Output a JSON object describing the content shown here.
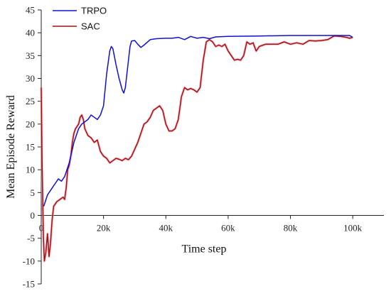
{
  "chart_data": {
    "type": "line",
    "title": "",
    "xlabel": "Time step",
    "ylabel": "Mean Episode Reward",
    "xlim": [
      0,
      110000
    ],
    "ylim": [
      -15,
      45
    ],
    "x_ticks": [
      0,
      20000,
      40000,
      60000,
      80000,
      100000
    ],
    "x_tick_labels": [
      "0",
      "20k",
      "40k",
      "60k",
      "80k",
      "100k"
    ],
    "y_ticks": [
      -15,
      -10,
      -5,
      0,
      5,
      10,
      15,
      20,
      25,
      30,
      35,
      40,
      45
    ],
    "y_tick_labels": [
      "-15",
      "-10",
      "-5",
      "0",
      "5",
      "10",
      "15",
      "20",
      "25",
      "30",
      "35",
      "40",
      "45"
    ],
    "grid": false,
    "legend_position": "top-left",
    "series": [
      {
        "name": "TRPO",
        "color": "#1010d0",
        "x": [
          800,
          2000,
          3500,
          4500,
          5500,
          6500,
          7500,
          9000,
          10500,
          12000,
          13000,
          14000,
          15000,
          16000,
          17000,
          18000,
          19000,
          20000,
          21000,
          22000,
          22500,
          23000,
          24000,
          25000,
          26000,
          26500,
          27000,
          28000,
          28500,
          29000,
          30000,
          31000,
          32000,
          33000,
          35000,
          37000,
          40000,
          42000,
          44000,
          46000,
          48000,
          50000,
          52000,
          54000,
          56000,
          60000,
          70000,
          80000,
          90000,
          99000,
          100000
        ],
        "y": [
          2,
          4.5,
          6,
          7,
          8,
          7.5,
          8.5,
          11.5,
          16,
          19,
          20,
          20.5,
          21,
          22,
          21.5,
          21,
          22,
          24,
          31,
          36,
          37,
          36.5,
          33,
          30,
          27.5,
          26.8,
          28,
          34,
          37,
          38.2,
          38.3,
          37.5,
          36.8,
          37.3,
          38.5,
          38.7,
          38.8,
          38.8,
          39,
          38.5,
          39.2,
          38.8,
          39,
          38.7,
          39.1,
          39.2,
          39.3,
          39.4,
          39.4,
          39.4,
          39
        ]
      },
      {
        "name": "SAC",
        "color": "#a01010",
        "x": [
          0,
          300,
          700,
          1000,
          1500,
          2000,
          2500,
          3000,
          3500,
          4000,
          5000,
          6000,
          7000,
          7500,
          8000,
          8500,
          9000,
          9500,
          10000,
          10500,
          11000,
          12000,
          12500,
          13000,
          13500,
          14000,
          15000,
          16000,
          17000,
          18000,
          19000,
          20000,
          21000,
          22000,
          23000,
          24000,
          25000,
          26000,
          27000,
          28000,
          29000,
          30000,
          31000,
          32000,
          33000,
          34000,
          35000,
          36000,
          37000,
          38000,
          39000,
          40000,
          41000,
          42000,
          43000,
          44000,
          45000,
          46000,
          47000,
          48000,
          49000,
          50000,
          51000,
          52000,
          53000,
          54000,
          55000,
          56000,
          57000,
          58000,
          59000,
          60000,
          61000,
          62000,
          63000,
          64000,
          65000,
          66000,
          67000,
          68000,
          69000,
          70000,
          72000,
          74000,
          76000,
          78000,
          80000,
          82000,
          84000,
          86000,
          88000,
          90000,
          92000,
          94000,
          96000,
          98000,
          99000,
          100000
        ],
        "y": [
          28,
          10,
          -5,
          -10,
          -8,
          -4,
          -9,
          -6,
          -1,
          2,
          3,
          3.5,
          4,
          3.5,
          6,
          10,
          11,
          13,
          16,
          18,
          19,
          20,
          21.5,
          22,
          21,
          19,
          17.5,
          17,
          16,
          16.5,
          14,
          13,
          12.5,
          11.5,
          12,
          12.5,
          12.3,
          12,
          12.5,
          12.2,
          13,
          14.5,
          16,
          18,
          20,
          20.5,
          21.5,
          23,
          23.5,
          24,
          23,
          20,
          18.5,
          18.5,
          19,
          21,
          26,
          28,
          27.5,
          27.8,
          27.5,
          27,
          28,
          34,
          38,
          38.5,
          38,
          37,
          37.3,
          37,
          37.5,
          36,
          35,
          34,
          34.2,
          34,
          35,
          38,
          37.5,
          37.8,
          36,
          37,
          37.5,
          37.5,
          37.5,
          38,
          37.5,
          37.8,
          37.5,
          38.3,
          38.2,
          38.3,
          38.5,
          39.3,
          39.2,
          39,
          38.8,
          39
        ]
      }
    ]
  }
}
